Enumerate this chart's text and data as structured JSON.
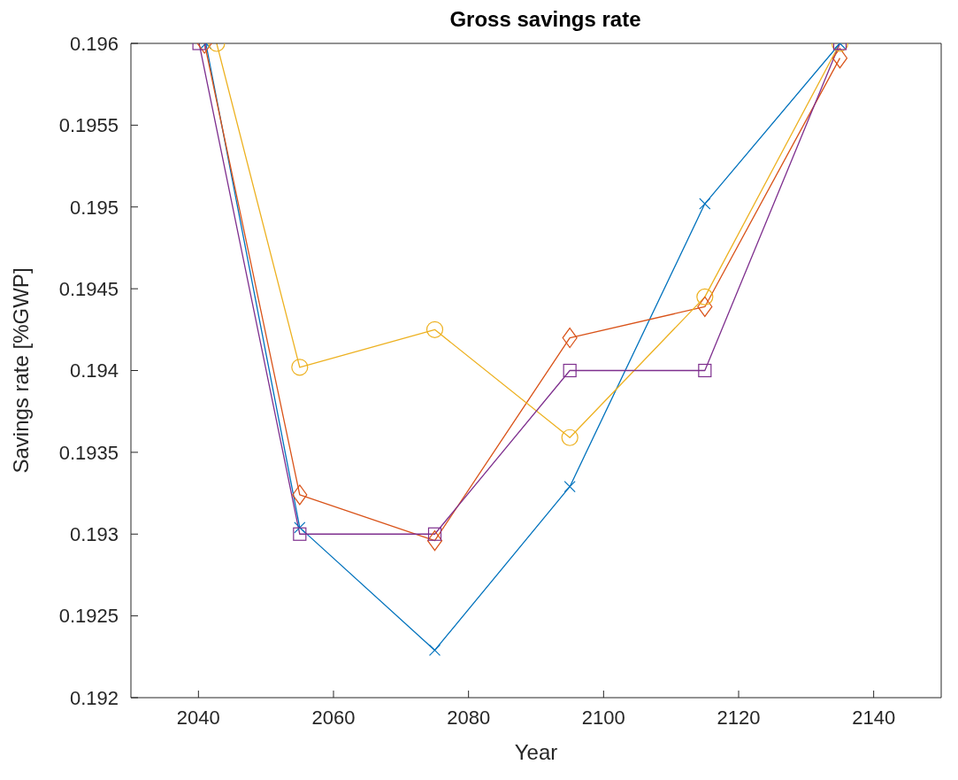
{
  "chart_data": {
    "type": "line",
    "title": "Gross savings rate",
    "xlabel": "Year",
    "ylabel": "Savings rate [%GWP]",
    "xlim": [
      2030,
      2150
    ],
    "xticks": [
      2040,
      2060,
      2080,
      2100,
      2120,
      2140
    ],
    "ylim": [
      0.192,
      0.196
    ],
    "yticks": [
      0.192,
      0.1925,
      0.193,
      0.1935,
      0.194,
      0.1945,
      0.195,
      0.1955,
      0.196
    ],
    "line_style": "solid",
    "series": [
      {
        "color": "#0072bd",
        "marker": "cross",
        "x": [
          2041.1,
          2055,
          2075,
          2095,
          2115,
          2135
        ],
        "values": [
          0.196,
          0.19304,
          0.19229,
          0.19329,
          0.19502,
          0.196
        ]
      },
      {
        "color": "#d95319",
        "marker": "diamond",
        "x": [
          2040.9,
          2055,
          2075,
          2095,
          2115,
          2135
        ],
        "values": [
          0.196,
          0.19324,
          0.19296,
          0.1942,
          0.19439,
          0.19591
        ]
      },
      {
        "color": "#edb120",
        "marker": "circle",
        "x": [
          2042.7,
          2055,
          2075,
          2095,
          2115,
          2135
        ],
        "values": [
          0.196,
          0.19402,
          0.19425,
          0.19359,
          0.19445,
          0.196
        ]
      },
      {
        "color": "#7e2f8e",
        "marker": "square",
        "x": [
          2040.1,
          2055,
          2075,
          2095,
          2115,
          2135
        ],
        "values": [
          0.196,
          0.193,
          0.193,
          0.194,
          0.194,
          0.196
        ]
      }
    ]
  }
}
